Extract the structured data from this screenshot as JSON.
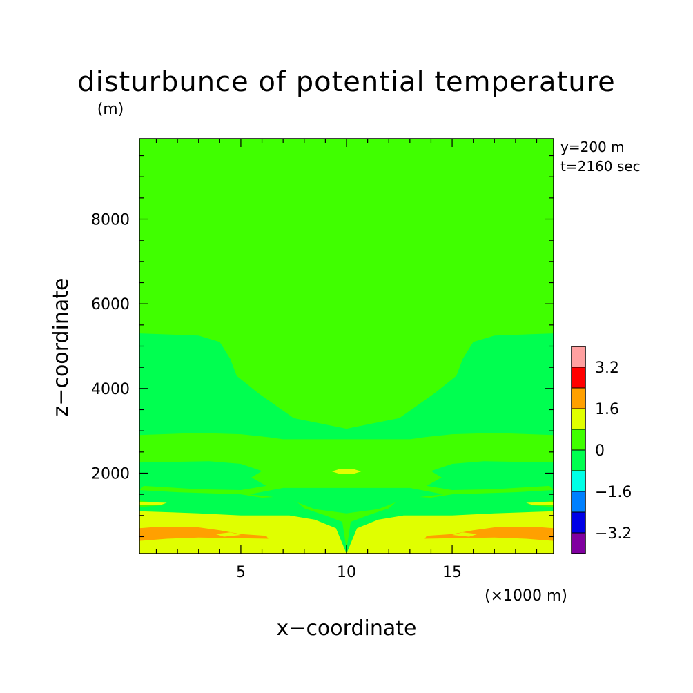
{
  "chart_data": {
    "type": "heatmap",
    "title": "disturbunce of potential temperature",
    "xlabel": "x−coordinate",
    "ylabel": "z−coordinate",
    "x_unit": "(×1000 m)",
    "y_unit": "(m)",
    "annotations": [
      "y=200 m",
      "t=2160 sec"
    ],
    "xlim": [
      0.2,
      19.8
    ],
    "ylim": [
      100,
      9900
    ],
    "x_ticks": [
      5,
      10,
      15
    ],
    "x_tick_labels": [
      "5",
      "10",
      "15"
    ],
    "y_ticks": [
      2000,
      4000,
      6000,
      8000
    ],
    "y_tick_labels": [
      "2000",
      "4000",
      "6000",
      "8000"
    ],
    "colorbar": {
      "levels": [
        -4.0,
        -3.2,
        -2.4,
        -1.6,
        -0.8,
        0,
        0.8,
        1.6,
        2.4,
        3.2,
        4.0
      ],
      "colors": [
        "#8000a0",
        "#0000e6",
        "#0080ff",
        "#00ffe6",
        "#00ff50",
        "#40ff00",
        "#e0ff00",
        "#ffa000",
        "#ff0000",
        "#ffa0a0"
      ],
      "tick_labels": [
        "−3.2",
        "−1.6",
        "0",
        "1.6",
        "3.2"
      ],
      "tick_values": [
        -3.2,
        -1.6,
        0,
        1.6,
        3.2
      ]
    },
    "regions": [
      {
        "level": 0.4,
        "color": "#40ff00",
        "polygon": [
          [
            0.2,
            100
          ],
          [
            19.8,
            100
          ],
          [
            19.8,
            9900
          ],
          [
            0.2,
            9900
          ]
        ]
      },
      {
        "level": -0.4,
        "color": "#00ff50",
        "polygon": [
          [
            0.2,
            1600
          ],
          [
            0.4,
            1700
          ],
          [
            3,
            1620
          ],
          [
            5,
            1600
          ],
          [
            6.2,
            1700
          ],
          [
            5.5,
            1900
          ],
          [
            6,
            2050
          ],
          [
            5,
            2220
          ],
          [
            3.5,
            2280
          ],
          [
            0.2,
            2250
          ],
          [
            0.2,
            2900
          ],
          [
            3,
            2950
          ],
          [
            5,
            2920
          ],
          [
            6.3,
            2850
          ],
          [
            7,
            2800
          ],
          [
            8.5,
            2800
          ],
          [
            10,
            2800
          ],
          [
            11.5,
            2800
          ],
          [
            13,
            2800
          ],
          [
            13.7,
            2850
          ],
          [
            15,
            2920
          ],
          [
            17,
            2950
          ],
          [
            19.8,
            2900
          ],
          [
            19.8,
            2250
          ],
          [
            16.5,
            2280
          ],
          [
            15,
            2220
          ],
          [
            14,
            2050
          ],
          [
            14.5,
            1900
          ],
          [
            13.8,
            1700
          ],
          [
            15,
            1600
          ],
          [
            17,
            1620
          ],
          [
            19.6,
            1700
          ],
          [
            19.8,
            1600
          ],
          [
            19.8,
            5300
          ],
          [
            17,
            5250
          ],
          [
            16,
            5100
          ],
          [
            15.5,
            4700
          ],
          [
            15.2,
            4300
          ],
          [
            14.2,
            3900
          ],
          [
            12.5,
            3300
          ],
          [
            10,
            3050
          ],
          [
            7.5,
            3300
          ],
          [
            5.8,
            3900
          ],
          [
            4.8,
            4300
          ],
          [
            4.5,
            4700
          ],
          [
            4,
            5100
          ],
          [
            3,
            5250
          ],
          [
            0.2,
            5300
          ]
        ]
      },
      {
        "level": -0.4,
        "color": "#00ff50",
        "polygon": [
          [
            0.2,
            1200
          ],
          [
            1.5,
            1250
          ],
          [
            1,
            1300
          ],
          [
            0.2,
            1350
          ],
          [
            0.2,
            1600
          ],
          [
            2,
            1550
          ],
          [
            5,
            1500
          ],
          [
            6,
            1420
          ],
          [
            7,
            1450
          ],
          [
            7.7,
            1300
          ],
          [
            8,
            1170
          ],
          [
            9,
            1000
          ],
          [
            9.8,
            850
          ],
          [
            10,
            200
          ],
          [
            10.2,
            850
          ],
          [
            11,
            1000
          ],
          [
            12,
            1170
          ],
          [
            12.3,
            1300
          ],
          [
            13,
            1450
          ],
          [
            14,
            1420
          ],
          [
            15,
            1500
          ],
          [
            18,
            1550
          ],
          [
            19.8,
            1600
          ],
          [
            19.8,
            1350
          ],
          [
            19,
            1300
          ],
          [
            18.5,
            1250
          ],
          [
            19.8,
            1200
          ],
          [
            19.8,
            1100
          ],
          [
            17,
            1050
          ],
          [
            15,
            1000
          ],
          [
            12.7,
            1000
          ],
          [
            11.5,
            900
          ],
          [
            10.5,
            700
          ],
          [
            10,
            100
          ],
          [
            9.5,
            700
          ],
          [
            8.5,
            900
          ],
          [
            7.3,
            1000
          ],
          [
            5,
            1000
          ],
          [
            3,
            1050
          ],
          [
            0.2,
            1100
          ]
        ]
      },
      {
        "level": -0.4,
        "color": "#00ff50",
        "polygon": [
          [
            7,
            1650
          ],
          [
            13,
            1650
          ],
          [
            14.6,
            1500
          ],
          [
            12.8,
            1400
          ],
          [
            11.5,
            1150
          ],
          [
            10,
            1050
          ],
          [
            8.5,
            1150
          ],
          [
            7.2,
            1400
          ],
          [
            5.4,
            1500
          ]
        ]
      },
      {
        "level": 0.4,
        "color": "#40ff00",
        "polygon": [
          [
            4.2,
            9600
          ],
          [
            15.8,
            9600
          ],
          [
            16,
            9500
          ],
          [
            15.3,
            7000
          ],
          [
            14.8,
            6000
          ],
          [
            14,
            5750
          ],
          [
            12.5,
            5600
          ],
          [
            11,
            5180
          ],
          [
            10,
            5050
          ],
          [
            9,
            5180
          ],
          [
            7.5,
            5600
          ],
          [
            6,
            5750
          ],
          [
            5.2,
            6000
          ],
          [
            4.7,
            7000
          ],
          [
            4,
            9500
          ]
        ]
      },
      {
        "level": 1.2,
        "color": "#e0ff00",
        "polygon": [
          [
            0.2,
            100
          ],
          [
            19.8,
            100
          ],
          [
            19.8,
            1100
          ],
          [
            17,
            1050
          ],
          [
            15,
            1000
          ],
          [
            12.7,
            1000
          ],
          [
            11.5,
            900
          ],
          [
            10.5,
            700
          ],
          [
            10,
            100
          ],
          [
            9.5,
            700
          ],
          [
            8.5,
            900
          ],
          [
            7.3,
            1000
          ],
          [
            5,
            1000
          ],
          [
            3,
            1050
          ],
          [
            0.2,
            1100
          ]
        ]
      },
      {
        "level": 1.2,
        "color": "#e0ff00",
        "polygon": [
          [
            0.2,
            1250
          ],
          [
            1.2,
            1250
          ],
          [
            1.5,
            1300
          ],
          [
            0.2,
            1320
          ]
        ]
      },
      {
        "level": 1.2,
        "color": "#e0ff00",
        "polygon": [
          [
            19.8,
            1250
          ],
          [
            18.8,
            1250
          ],
          [
            18.5,
            1300
          ],
          [
            19.8,
            1320
          ]
        ]
      },
      {
        "level": 1.2,
        "color": "#e0ff00",
        "polygon": [
          [
            9.3,
            2040
          ],
          [
            9.7,
            2100
          ],
          [
            10.3,
            2100
          ],
          [
            10.7,
            2040
          ],
          [
            10.3,
            1980
          ],
          [
            9.7,
            1980
          ]
        ]
      },
      {
        "level": 2.0,
        "color": "#ffa000",
        "polygon": [
          [
            0.2,
            400
          ],
          [
            1.5,
            450
          ],
          [
            3,
            480
          ],
          [
            6.3,
            450
          ],
          [
            6.2,
            520
          ],
          [
            5,
            560
          ],
          [
            4,
            650
          ],
          [
            3,
            720
          ],
          [
            1,
            730
          ],
          [
            0.2,
            700
          ]
        ]
      },
      {
        "level": 2.0,
        "color": "#ffa000",
        "polygon": [
          [
            19.8,
            400
          ],
          [
            18.5,
            450
          ],
          [
            17,
            480
          ],
          [
            13.7,
            450
          ],
          [
            13.8,
            520
          ],
          [
            15,
            560
          ],
          [
            16,
            650
          ],
          [
            17,
            720
          ],
          [
            19,
            730
          ],
          [
            19.8,
            700
          ]
        ]
      },
      {
        "level": 1.2,
        "color": "#e0ff00",
        "polygon": [
          [
            4.2,
            500
          ],
          [
            5,
            540
          ],
          [
            4.5,
            600
          ],
          [
            3.8,
            560
          ]
        ]
      },
      {
        "level": 1.2,
        "color": "#e0ff00",
        "polygon": [
          [
            15.8,
            500
          ],
          [
            15,
            540
          ],
          [
            15.5,
            600
          ],
          [
            16.2,
            560
          ]
        ]
      }
    ]
  }
}
